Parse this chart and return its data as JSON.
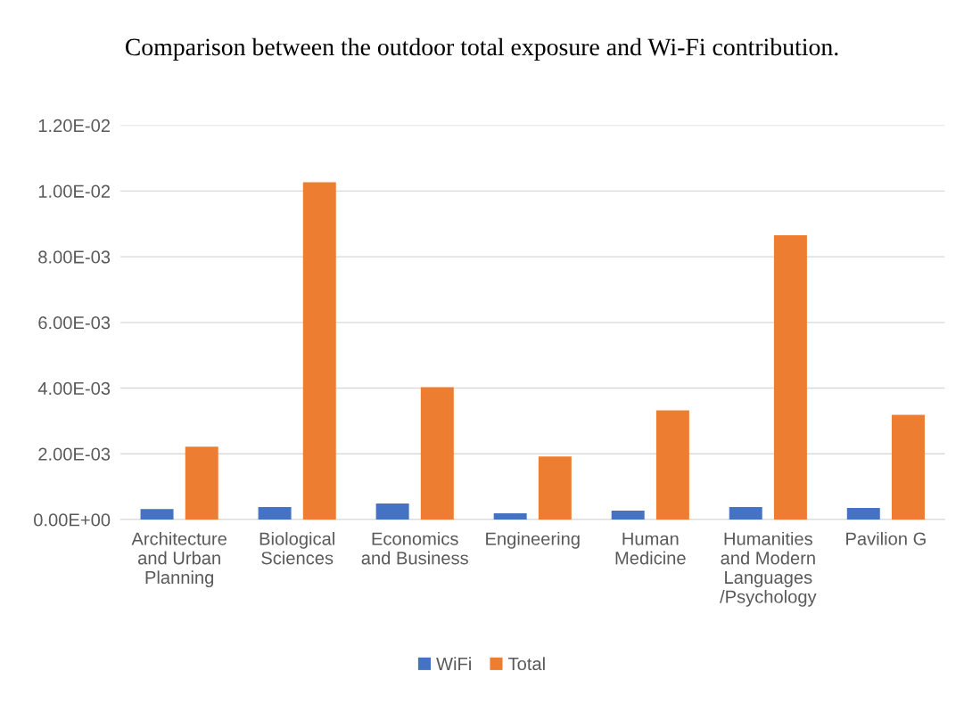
{
  "chart_data": {
    "type": "bar",
    "title": "Comparison between the outdoor total exposure and Wi-Fi contribution.",
    "categories": [
      "Architecture\nand Urban\nPlanning",
      "Biological\nSciences",
      "Economics\nand Business",
      "Engineering",
      "Human\nMedicine",
      "Humanities\nand Modern\nLanguages\n/Psychology",
      "Pavilion G"
    ],
    "series": [
      {
        "name": "WiFi",
        "color": "#4472c4",
        "values": [
          0.00032,
          0.00038,
          0.00049,
          0.00019,
          0.00027,
          0.00038,
          0.00035
        ]
      },
      {
        "name": "Total",
        "color": "#ed7d31",
        "values": [
          0.00222,
          0.01027,
          0.00403,
          0.00192,
          0.00332,
          0.00865,
          0.00319
        ]
      }
    ],
    "ylim": [
      0,
      0.012
    ],
    "yticks": [
      {
        "value": 0,
        "label": "0.00E+00"
      },
      {
        "value": 0.002,
        "label": "2.00E-03"
      },
      {
        "value": 0.004,
        "label": "4.00E-03"
      },
      {
        "value": 0.006,
        "label": "6.00E-03"
      },
      {
        "value": 0.008,
        "label": "8.00E-03"
      },
      {
        "value": 0.01,
        "label": "1.00E-02"
      },
      {
        "value": 0.012,
        "label": "1.20E-02"
      }
    ],
    "grid": "y",
    "legend": "bottom"
  }
}
